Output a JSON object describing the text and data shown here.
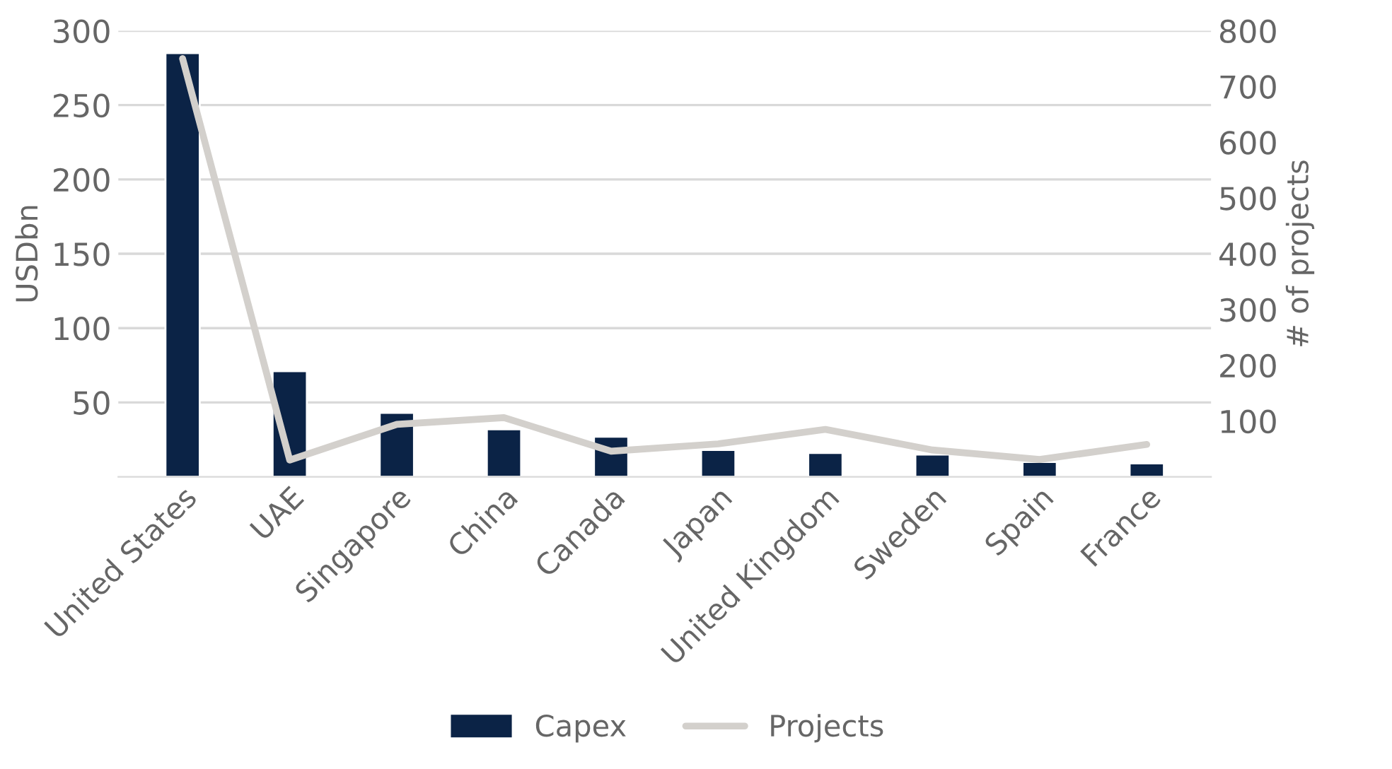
{
  "chart_data": {
    "type": "bar",
    "ylabel": "USDbn",
    "y2label": "# of projects",
    "categories": [
      "United States",
      "UAE",
      "Singapore",
      "China",
      "Canada",
      "Japan",
      "United Kingdom",
      "Sweden",
      "Spain",
      "France"
    ],
    "series": [
      {
        "name": "Capex",
        "type": "bar",
        "color": "#0b2346",
        "values": [
          285,
          71,
          43,
          32,
          27,
          18,
          16,
          15,
          10,
          9
        ]
      },
      {
        "name": "Projects",
        "type": "line",
        "axis": "y2",
        "color": "#d3d0cc",
        "values": [
          750,
          30,
          94,
          106,
          46,
          59,
          85,
          48,
          31,
          58
        ]
      }
    ],
    "ylim": [
      0,
      300
    ],
    "yticks": [
      50,
      100,
      150,
      200,
      250,
      300
    ],
    "y2lim": [
      0,
      800
    ],
    "y2ticks": [
      100,
      200,
      300,
      400,
      500,
      600,
      700,
      800
    ],
    "grid": "y",
    "legend": "bottom",
    "line_style": "solid",
    "marker": "none"
  }
}
